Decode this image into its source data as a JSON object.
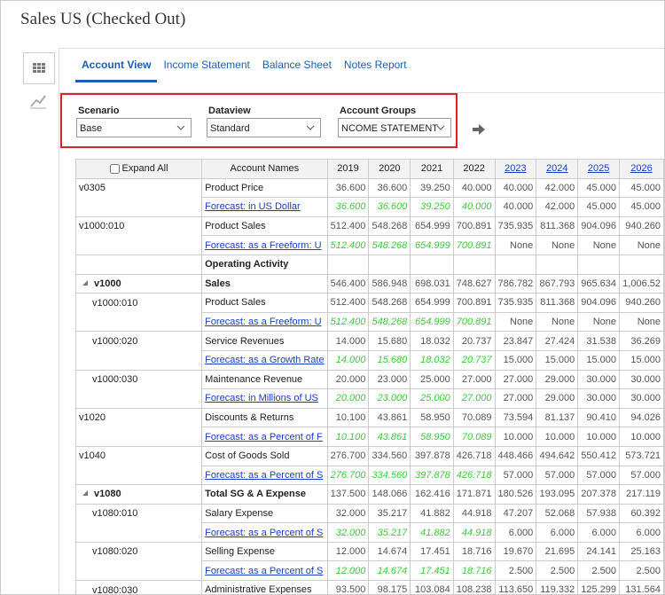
{
  "header": {
    "title": "Sales US (Checked Out)"
  },
  "tabs": [
    "Account View",
    "Income Statement",
    "Balance Sheet",
    "Notes Report"
  ],
  "filters": [
    {
      "label": "Scenario",
      "value": "Base"
    },
    {
      "label": "Dataview",
      "value": "Standard"
    },
    {
      "label": "Account Groups",
      "value": "NCOME STATEMENT"
    }
  ],
  "table": {
    "expand_all": "Expand All",
    "columns": [
      "Account Names",
      "2019",
      "2020",
      "2021",
      "2022",
      "2023",
      "2024",
      "2025",
      "2026"
    ],
    "rows": [
      {
        "code": "v0305",
        "name": "Product Price",
        "values": [
          "36.600",
          "36.600",
          "39.250",
          "40.000",
          "40.000",
          "42.000",
          "45.000",
          "45.000"
        ]
      },
      {
        "name": "Forecast: in US Dollar",
        "values": [
          "36.600",
          "36.600",
          "39.250",
          "40.000",
          "40.000",
          "42.000",
          "45.000",
          "45.000"
        ]
      },
      {
        "code": "v1000:010",
        "name": "Product Sales",
        "values": [
          "512.400",
          "548.268",
          "654.999",
          "700.891",
          "735.935",
          "811.368",
          "904.096",
          "940.260"
        ]
      },
      {
        "name": "Forecast: as a Freeform: U",
        "values": [
          "512.400",
          "548.268",
          "654.999",
          "700.891",
          "None",
          "None",
          "None",
          "None"
        ]
      },
      {
        "name": "Operating Activity",
        "bold": true
      },
      {
        "code": "v1000",
        "name": "Sales",
        "bold": true,
        "values": [
          "546.400",
          "586.948",
          "698.031",
          "748.627",
          "786.782",
          "867.793",
          "965.634",
          "1,006.52"
        ]
      },
      {
        "code": "v1000:010",
        "name": "Product Sales",
        "indent": true,
        "values": [
          "512.400",
          "548.268",
          "654.999",
          "700.891",
          "735.935",
          "811.368",
          "904.096",
          "940.260"
        ]
      },
      {
        "name": "Forecast: as a Freeform: U",
        "values": [
          "512.400",
          "548.268",
          "654.999",
          "700.891",
          "None",
          "None",
          "None",
          "None"
        ]
      },
      {
        "code": "v1000:020",
        "name": "Service Revenues",
        "indent": true,
        "values": [
          "14.000",
          "15.680",
          "18.032",
          "20.737",
          "23.847",
          "27.424",
          "31.538",
          "36.269"
        ]
      },
      {
        "name": "Forecast: as a Growth Rate",
        "values": [
          "14.000",
          "15.680",
          "18.032",
          "20.737",
          "15.000",
          "15.000",
          "15.000",
          "15.000"
        ]
      },
      {
        "code": "v1000:030",
        "name": "Maintenance Revenue",
        "indent": true,
        "values": [
          "20.000",
          "23.000",
          "25.000",
          "27.000",
          "27.000",
          "29.000",
          "30.000",
          "30.000"
        ]
      },
      {
        "name": "Forecast: in Millions of US",
        "values": [
          "20.000",
          "23.000",
          "25.000",
          "27.000",
          "27.000",
          "29.000",
          "30.000",
          "30.000"
        ]
      },
      {
        "code": "v1020",
        "name": "Discounts & Returns",
        "values": [
          "10.100",
          "43.861",
          "58.950",
          "70.089",
          "73.594",
          "81.137",
          "90.410",
          "94.026"
        ]
      },
      {
        "name": "Forecast: as a Percent of F",
        "values": [
          "10.100",
          "43.861",
          "58.950",
          "70.089",
          "10.000",
          "10.000",
          "10.000",
          "10.000"
        ]
      },
      {
        "code": "v1040",
        "name": "Cost of Goods Sold",
        "values": [
          "276.700",
          "334.560",
          "397.878",
          "426.718",
          "448.466",
          "494.642",
          "550.412",
          "573.721"
        ]
      },
      {
        "name": "Forecast: as a Percent of S",
        "values": [
          "276.700",
          "334.560",
          "397.878",
          "426.718",
          "57.000",
          "57.000",
          "57.000",
          "57.000"
        ]
      },
      {
        "code": "v1080",
        "name": "Total SG & A Expense",
        "bold": true,
        "values": [
          "137.500",
          "148.066",
          "162.416",
          "171.871",
          "180.526",
          "193.095",
          "207.378",
          "217.119"
        ]
      },
      {
        "code": "v1080:010",
        "name": "Salary Expense",
        "indent": true,
        "values": [
          "32.000",
          "35.217",
          "41.882",
          "44.918",
          "47.207",
          "52.068",
          "57.938",
          "60.392"
        ]
      },
      {
        "name": "Forecast: as a Percent of S",
        "values": [
          "32.000",
          "35.217",
          "41.882",
          "44.918",
          "6.000",
          "6.000",
          "6.000",
          "6.000"
        ]
      },
      {
        "code": "v1080:020",
        "name": "Selling Expense",
        "indent": true,
        "values": [
          "12.000",
          "14.674",
          "17.451",
          "18.716",
          "19.670",
          "21.695",
          "24.141",
          "25.163"
        ]
      },
      {
        "name": "Forecast: as a Percent of S",
        "values": [
          "12.000",
          "14.674",
          "17.451",
          "18.716",
          "2.500",
          "2.500",
          "2.500",
          "2.500"
        ]
      },
      {
        "code": "v1080:030",
        "name": "Administrative Expenses",
        "indent": true,
        "values": [
          "93.500",
          "98.175",
          "103.084",
          "108.238",
          "113.650",
          "119.332",
          "125.299",
          "131.564"
        ]
      }
    ]
  }
}
